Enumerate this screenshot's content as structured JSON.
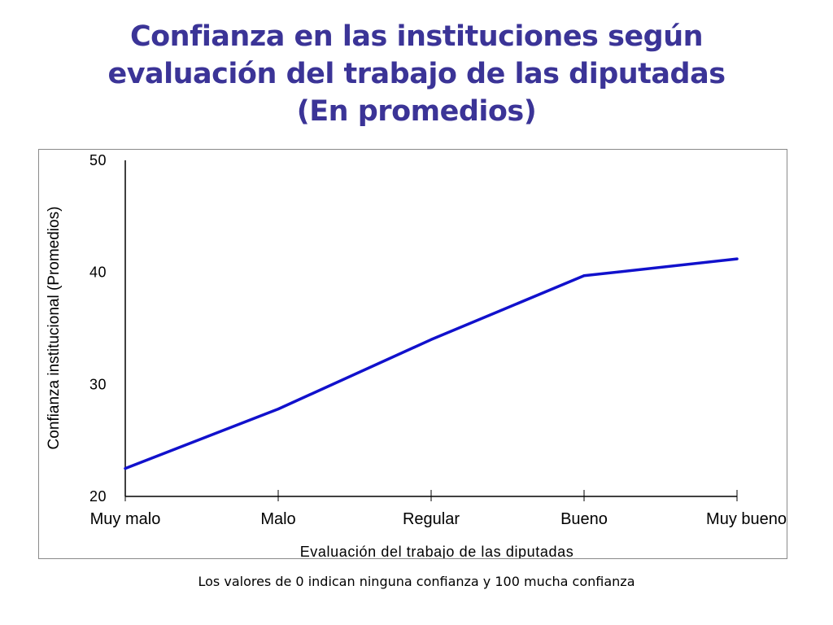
{
  "slide": {
    "title_lines": [
      "Confianza en las instituciones según",
      "evaluación del trabajo de las diputadas",
      "(En promedios)"
    ],
    "footnote": "Los valores de 0 indican ninguna confianza y 100 mucha confianza"
  },
  "colors": {
    "title": "#3b3497",
    "series_line": "#1111cc",
    "axis": "#000000",
    "frame": "#8a8a8a"
  },
  "chart_data": {
    "type": "line",
    "title": "",
    "xlabel": "Evaluación del trabajo de las diputadas",
    "ylabel": "Confianza institucional (Promedios)",
    "categories": [
      "Muy malo",
      "Malo",
      "Regular",
      "Bueno",
      "Muy bueno"
    ],
    "series": [
      {
        "values": [
          22.5,
          27.8,
          34.0,
          39.7,
          41.2
        ]
      }
    ],
    "yticks": [
      20,
      30,
      40,
      50
    ],
    "ylim": [
      20,
      50
    ],
    "grid": false,
    "legend": "none"
  }
}
